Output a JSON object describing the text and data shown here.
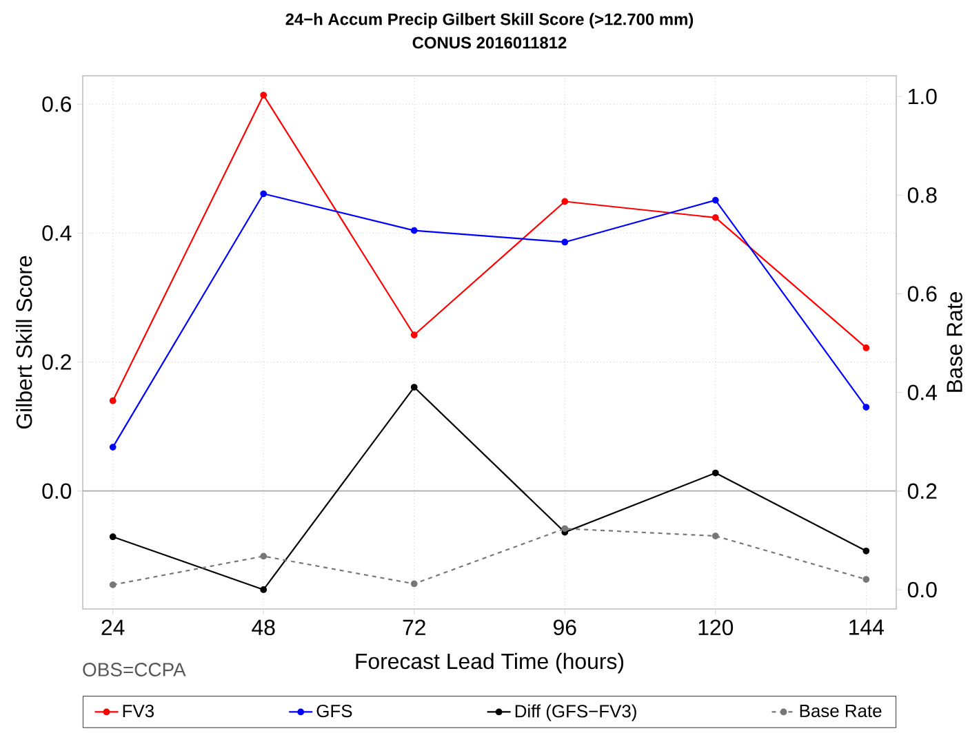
{
  "chart_data": {
    "type": "line",
    "title": "24−h Accum Precip Gilbert Skill Score (>12.700 mm)",
    "subtitle": "CONUS 2016011812",
    "xlabel": "Forecast Lead Time (hours)",
    "ylabel": "Gilbert Skill Score",
    "y2label": "Base Rate",
    "annotations": [
      "OBS=CCPA"
    ],
    "x": [
      24,
      48,
      72,
      96,
      120,
      144
    ],
    "series": [
      {
        "name": "FV3",
        "color": "#ff0000",
        "values": [
          0.14,
          0.614,
          0.242,
          0.449,
          0.424,
          0.222
        ]
      },
      {
        "name": "GFS",
        "color": "#0000ff",
        "values": [
          0.068,
          0.461,
          0.404,
          0.386,
          0.451,
          0.13
        ]
      },
      {
        "name": "Diff (GFS−FV3)",
        "color": "#000000",
        "values": [
          -0.071,
          -0.153,
          0.161,
          -0.064,
          0.028,
          -0.093
        ]
      },
      {
        "name": "Base Rate",
        "color": "#777777",
        "axis": "y2",
        "line_style": "dashed",
        "values": [
          0.01,
          0.068,
          0.012,
          0.124,
          0.109,
          0.021
        ]
      }
    ],
    "xlim": [
      19.2,
      148.8
    ],
    "xticks": [
      24,
      48,
      72,
      96,
      120,
      144
    ],
    "ylim": [
      -0.183,
      0.644
    ],
    "yticks": [
      {
        "value": 0,
        "label": "0.0"
      },
      {
        "value": 0.2,
        "label": "0.2"
      },
      {
        "value": 0.4,
        "label": "0.4"
      },
      {
        "value": 0.6,
        "label": "0.6"
      }
    ],
    "y2lim": [
      -0.039,
      1.042
    ],
    "y2ticks": [
      {
        "value": 0,
        "label": "0.0"
      },
      {
        "value": 0.2,
        "label": "0.2"
      },
      {
        "value": 0.4,
        "label": "0.4"
      },
      {
        "value": 0.6,
        "label": "0.6"
      },
      {
        "value": 0.8,
        "label": "0.8"
      },
      {
        "value": 1.0,
        "label": "1.0"
      }
    ],
    "ref_lines": [
      {
        "axis": "y",
        "value": 0,
        "color": "#aaaaaa"
      }
    ],
    "grid": true,
    "legend": "bottom",
    "marker": "circle",
    "line_style": "solid"
  }
}
